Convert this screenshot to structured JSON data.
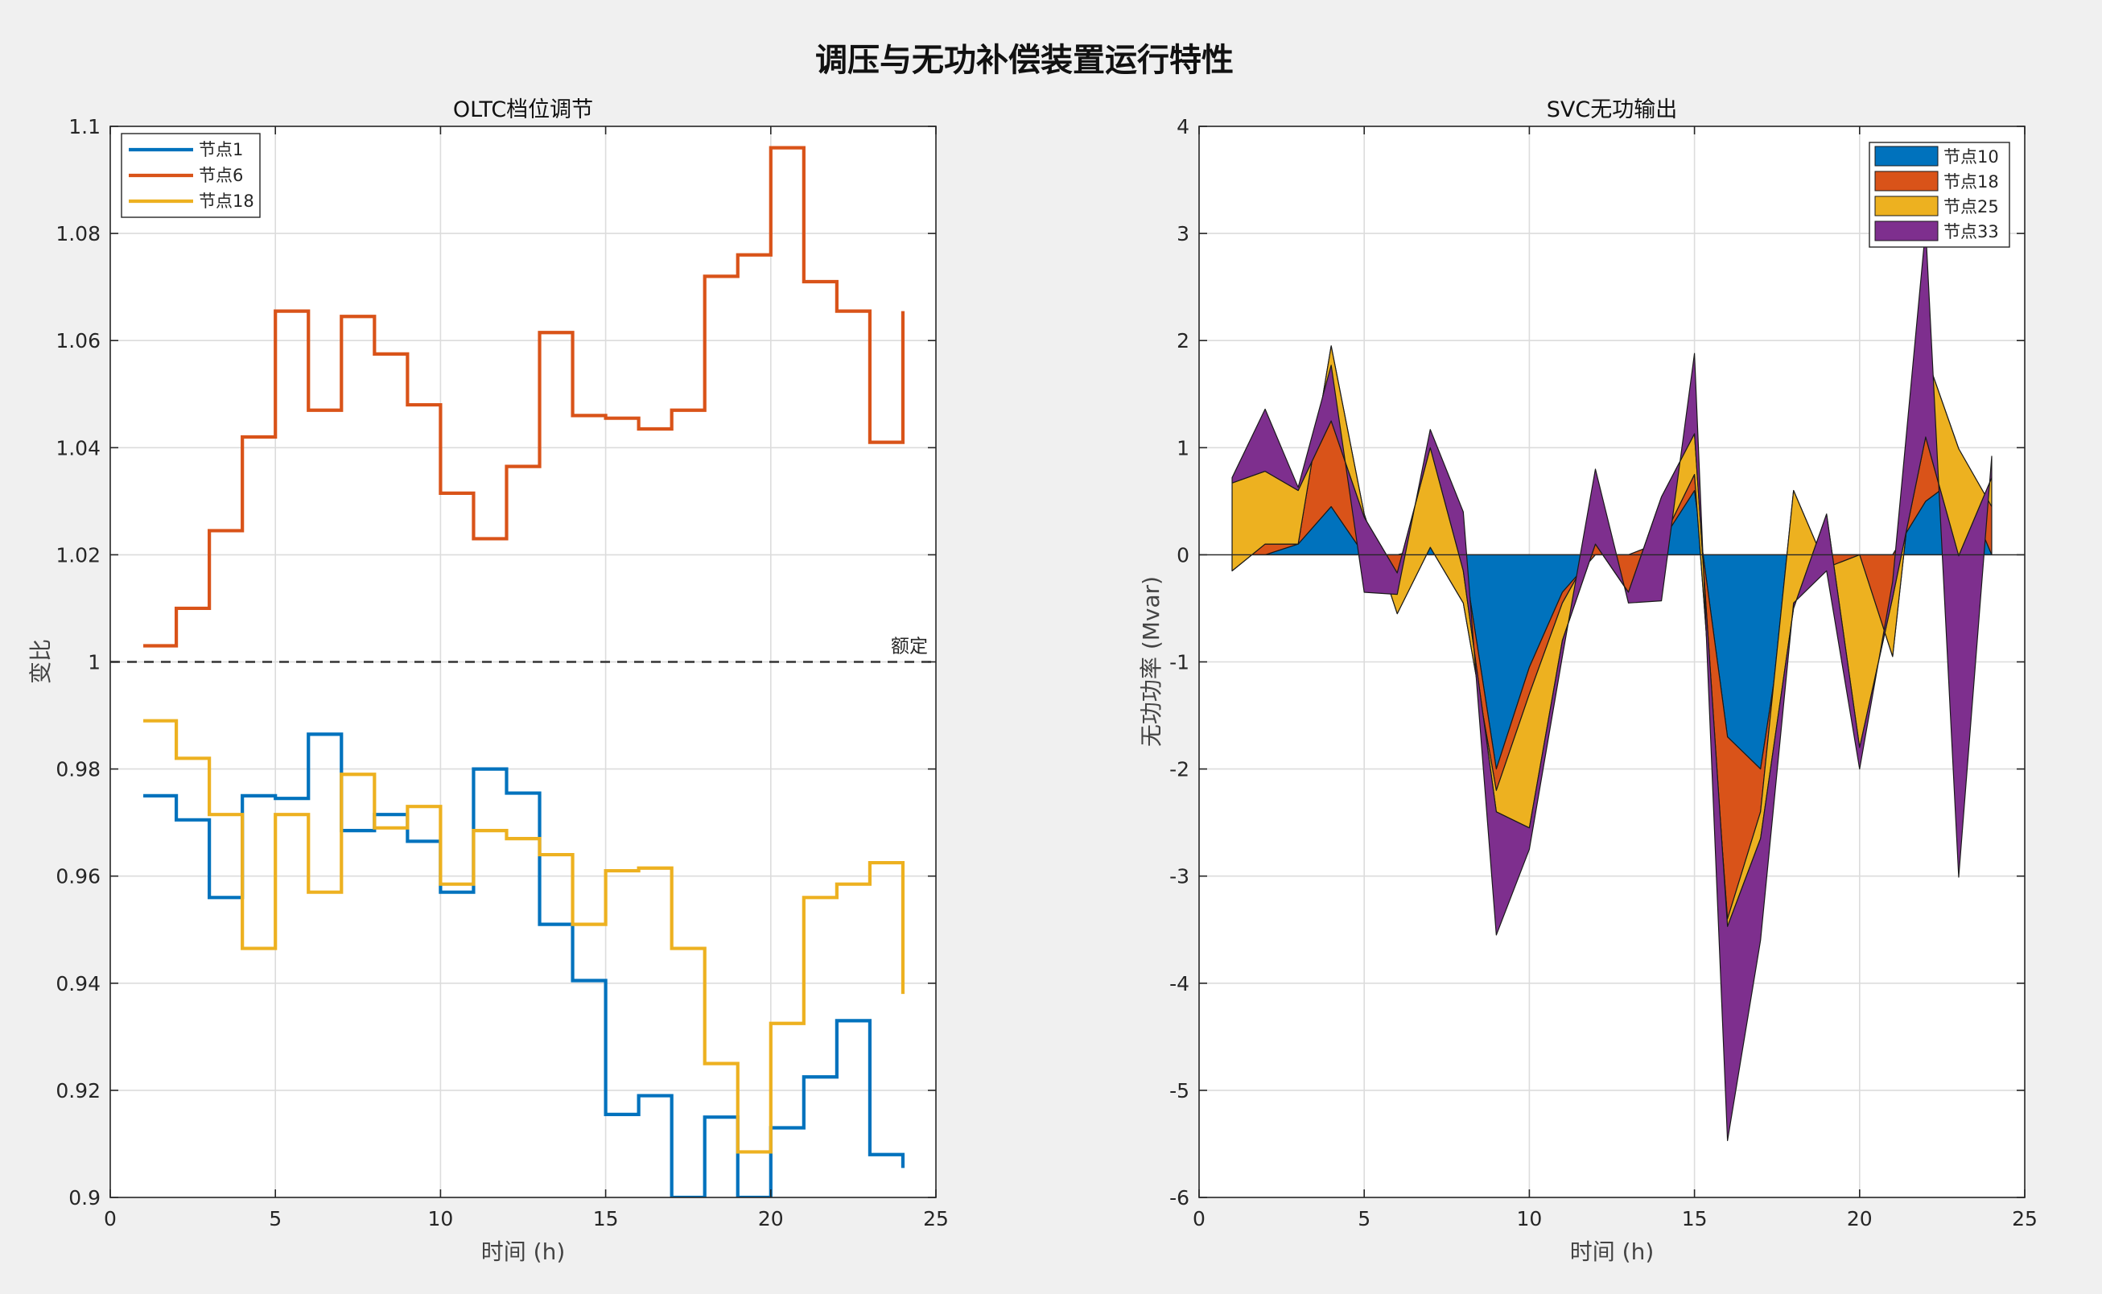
{
  "figure": {
    "title": "调压与无功补偿装置运行特性",
    "background": "#f0f0f0"
  },
  "chart_data": [
    {
      "type": "line",
      "title": "OLTC档位调节",
      "xlabel": "时间 (h)",
      "ylabel": "变比",
      "xlim": [
        0,
        25
      ],
      "ylim": [
        0.9,
        1.1
      ],
      "xticks": [
        "0",
        "5",
        "10",
        "15",
        "20",
        "25"
      ],
      "yticks": [
        "0.9",
        "0.92",
        "0.94",
        "0.96",
        "0.98",
        "1",
        "1.02",
        "1.04",
        "1.06",
        "1.08",
        "1.1"
      ],
      "grid": true,
      "legend_position": "top-left",
      "step": true,
      "x": [
        1,
        2,
        3,
        4,
        5,
        6,
        7,
        8,
        9,
        10,
        11,
        12,
        13,
        14,
        15,
        16,
        17,
        18,
        19,
        20,
        21,
        22,
        23,
        24
      ],
      "series": [
        {
          "name": "节点1",
          "color": "#0072BD",
          "values": [
            0.975,
            0.9705,
            0.956,
            0.975,
            0.9745,
            0.9865,
            0.9685,
            0.9715,
            0.9665,
            0.957,
            0.98,
            0.9755,
            0.951,
            0.9405,
            0.9155,
            0.919,
            0.9,
            0.915,
            0.9,
            0.913,
            0.9225,
            0.933,
            0.908,
            0.9055
          ]
        },
        {
          "name": "节点6",
          "color": "#D95319",
          "values": [
            1.003,
            1.01,
            1.0245,
            1.042,
            1.0655,
            1.047,
            1.0645,
            1.0575,
            1.048,
            1.0315,
            1.023,
            1.0365,
            1.0615,
            1.046,
            1.0455,
            1.0435,
            1.047,
            1.072,
            1.076,
            1.096,
            1.071,
            1.0655,
            1.041,
            1.0655
          ]
        },
        {
          "name": "节点18",
          "color": "#EDB120",
          "values": [
            0.989,
            0.982,
            0.9715,
            0.9465,
            0.9715,
            0.957,
            0.979,
            0.969,
            0.973,
            0.9585,
            0.9685,
            0.967,
            0.964,
            0.951,
            0.961,
            0.9615,
            0.9465,
            0.925,
            0.9085,
            0.9325,
            0.956,
            0.9585,
            0.9625,
            0.938
          ]
        }
      ],
      "reference_line": {
        "y": 1.0,
        "label": "额定",
        "style": "dashed"
      }
    },
    {
      "type": "area",
      "title": "SVC无功输出",
      "xlabel": "时间 (h)",
      "ylabel": "无功功率 (Mvar)",
      "xlim": [
        0,
        25
      ],
      "ylim": [
        -6,
        4
      ],
      "xticks": [
        "0",
        "5",
        "10",
        "15",
        "20",
        "25"
      ],
      "yticks": [
        "-6",
        "-5",
        "-4",
        "-3",
        "-2",
        "-1",
        "0",
        "1",
        "2",
        "3",
        "4"
      ],
      "grid": true,
      "legend_position": "top-right",
      "stacked": true,
      "x": [
        1,
        2,
        3,
        4,
        5,
        6,
        7,
        8,
        9,
        10,
        11,
        12,
        13,
        14,
        15,
        16,
        17,
        18,
        19,
        20,
        21,
        22,
        23,
        24
      ],
      "series": [
        {
          "name": "节点10",
          "color": "#0072BD",
          "values": [
            0,
            0,
            0.1,
            0.45,
            0,
            0,
            0.07,
            0,
            -2.0,
            -1.05,
            -0.35,
            0,
            0,
            0.12,
            0.6,
            -1.7,
            -2.0,
            0,
            0,
            0,
            0,
            0.5,
            0.73,
            0
          ]
        },
        {
          "name": "节点18",
          "color": "#D95319",
          "values": [
            -0.15,
            0.1,
            0,
            1.5,
            0.38,
            -0.55,
            0,
            -0.45,
            -0.2,
            -0.25,
            -0.1,
            0.1,
            -0.35,
            0,
            0.15,
            -1.7,
            -0.4,
            0.6,
            -0.12,
            0,
            -0.95,
            1.37,
            0.26,
            0.45
          ]
        },
        {
          "name": "节点25",
          "color": "#EDB120",
          "values": [
            0.82,
            0.68,
            0.5,
            -0.7,
            -0.03,
            0.38,
            0.93,
            0.3,
            -0.2,
            -1.25,
            -0.35,
            0,
            0,
            0.42,
            0.38,
            -0.07,
            -0.25,
            -1.1,
            0.5,
            -1.8,
            0.55,
            -0.77,
            -1.0,
            0.27
          ]
        },
        {
          "name": "节点33",
          "color": "#7E2F8E",
          "values": [
            0.05,
            0.58,
            0.03,
            0.52,
            -0.7,
            -0.2,
            0.17,
            0.55,
            -1.15,
            -0.2,
            -0.15,
            0.7,
            -0.1,
            -0.97,
            0.75,
            -2.0,
            -0.95,
            0.05,
            -0.53,
            -0.2,
            0.15,
            1.95,
            -3.0,
            0.2
          ]
        }
      ]
    }
  ]
}
